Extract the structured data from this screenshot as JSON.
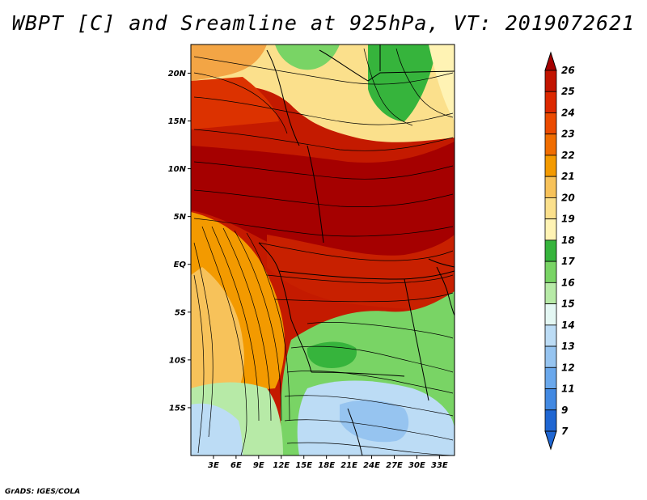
{
  "title": "WBPT [C] and Sreamline at 925hPa, VT: 2019072621",
  "credit": "GrADS: IGES/COLA",
  "map": {
    "lon_range": [
      0,
      35
    ],
    "lat_range": [
      -20,
      23
    ],
    "lon_ticks": [
      "3E",
      "6E",
      "9E",
      "12E",
      "15E",
      "18E",
      "21E",
      "24E",
      "27E",
      "30E",
      "33E"
    ],
    "lon_values": [
      3,
      6,
      9,
      12,
      15,
      18,
      21,
      24,
      27,
      30,
      33
    ],
    "lat_ticks": [
      "20N",
      "15N",
      "10N",
      "5N",
      "EQ",
      "5S",
      "10S",
      "15S"
    ],
    "lat_values": [
      20,
      15,
      10,
      5,
      0,
      -5,
      -10,
      -15
    ]
  },
  "colorbar": {
    "labels": [
      "26",
      "25",
      "24",
      "23",
      "22",
      "21",
      "20",
      "19",
      "18",
      "17",
      "16",
      "15",
      "14",
      "13",
      "12",
      "11",
      "9",
      "7"
    ],
    "colors": [
      "#a50000",
      "#c21400",
      "#dc2800",
      "#eb4a00",
      "#f06d00",
      "#f39a00",
      "#f7c25a",
      "#fbe08c",
      "#fff3b4",
      "#36b43c",
      "#79d465",
      "#b7eaa7",
      "#e4f7f3",
      "#bcdcf5",
      "#96c4f0",
      "#6aa8ec",
      "#4289e2",
      "#1f66d2"
    ]
  }
}
